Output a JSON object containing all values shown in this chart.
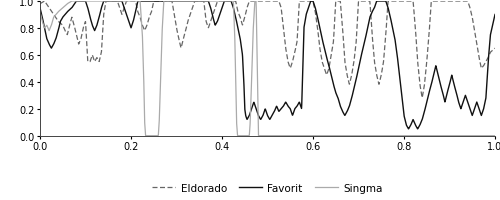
{
  "xlim": [
    0,
    1
  ],
  "ylim": [
    0,
    1.0
  ],
  "xticks": [
    0,
    0.2,
    0.4,
    0.6,
    0.8,
    1
  ],
  "yticks": [
    0,
    0.2,
    0.4,
    0.6,
    0.8,
    1
  ],
  "legend_labels": [
    "Eldorado",
    "Favorit",
    "Singma"
  ],
  "background_color": "#ffffff",
  "line_color_eldorado": "#666666",
  "line_color_favorit": "#111111",
  "line_color_singma": "#aaaaaa",
  "figsize": [
    5.0,
    2.01
  ],
  "dpi": 100,
  "eldorado_pts": [
    [
      0.0,
      0.98
    ],
    [
      0.01,
      1.0
    ],
    [
      0.02,
      0.95
    ],
    [
      0.03,
      0.9
    ],
    [
      0.04,
      0.85
    ],
    [
      0.05,
      0.82
    ],
    [
      0.055,
      0.78
    ],
    [
      0.06,
      0.75
    ],
    [
      0.065,
      0.82
    ],
    [
      0.07,
      0.88
    ],
    [
      0.075,
      0.82
    ],
    [
      0.08,
      0.75
    ],
    [
      0.085,
      0.68
    ],
    [
      0.09,
      0.72
    ],
    [
      0.095,
      0.8
    ],
    [
      0.1,
      0.85
    ],
    [
      0.105,
      0.55
    ],
    [
      0.11,
      0.55
    ],
    [
      0.115,
      0.6
    ],
    [
      0.12,
      0.55
    ],
    [
      0.125,
      0.58
    ],
    [
      0.13,
      0.55
    ],
    [
      0.135,
      0.62
    ],
    [
      0.14,
      0.9
    ],
    [
      0.145,
      1.0
    ],
    [
      0.15,
      1.0
    ],
    [
      0.16,
      1.0
    ],
    [
      0.17,
      1.0
    ],
    [
      0.175,
      0.95
    ],
    [
      0.18,
      0.9
    ],
    [
      0.185,
      0.95
    ],
    [
      0.19,
      1.0
    ],
    [
      0.2,
      1.0
    ],
    [
      0.21,
      1.0
    ],
    [
      0.215,
      0.92
    ],
    [
      0.22,
      0.88
    ],
    [
      0.225,
      0.82
    ],
    [
      0.23,
      0.78
    ],
    [
      0.235,
      0.82
    ],
    [
      0.24,
      0.88
    ],
    [
      0.245,
      0.92
    ],
    [
      0.25,
      1.0
    ],
    [
      0.26,
      1.0
    ],
    [
      0.27,
      1.0
    ],
    [
      0.28,
      1.0
    ],
    [
      0.29,
      1.0
    ],
    [
      0.295,
      0.9
    ],
    [
      0.3,
      0.8
    ],
    [
      0.305,
      0.72
    ],
    [
      0.31,
      0.65
    ],
    [
      0.315,
      0.72
    ],
    [
      0.32,
      0.78
    ],
    [
      0.325,
      0.85
    ],
    [
      0.33,
      0.9
    ],
    [
      0.335,
      0.95
    ],
    [
      0.34,
      1.0
    ],
    [
      0.35,
      1.0
    ],
    [
      0.36,
      1.0
    ],
    [
      0.365,
      0.85
    ],
    [
      0.37,
      0.8
    ],
    [
      0.375,
      0.85
    ],
    [
      0.38,
      0.9
    ],
    [
      0.385,
      0.95
    ],
    [
      0.39,
      1.0
    ],
    [
      0.4,
      1.0
    ],
    [
      0.41,
      1.0
    ],
    [
      0.42,
      1.0
    ],
    [
      0.43,
      1.0
    ],
    [
      0.435,
      0.92
    ],
    [
      0.44,
      0.88
    ],
    [
      0.445,
      0.82
    ],
    [
      0.45,
      0.88
    ],
    [
      0.455,
      0.95
    ],
    [
      0.46,
      1.0
    ],
    [
      0.47,
      1.0
    ],
    [
      0.48,
      1.0
    ],
    [
      0.485,
      1.0
    ],
    [
      0.49,
      1.0
    ],
    [
      0.5,
      1.0
    ],
    [
      0.505,
      1.0
    ],
    [
      0.51,
      1.0
    ],
    [
      0.515,
      1.0
    ],
    [
      0.52,
      1.0
    ],
    [
      0.525,
      1.0
    ],
    [
      0.53,
      0.95
    ],
    [
      0.535,
      0.8
    ],
    [
      0.54,
      0.65
    ],
    [
      0.545,
      0.55
    ],
    [
      0.55,
      0.5
    ],
    [
      0.555,
      0.55
    ],
    [
      0.56,
      0.62
    ],
    [
      0.565,
      0.7
    ],
    [
      0.57,
      1.0
    ],
    [
      0.58,
      1.0
    ],
    [
      0.585,
      1.0
    ],
    [
      0.59,
      1.0
    ],
    [
      0.595,
      1.0
    ],
    [
      0.6,
      1.0
    ],
    [
      0.605,
      0.92
    ],
    [
      0.61,
      0.8
    ],
    [
      0.615,
      0.65
    ],
    [
      0.62,
      0.55
    ],
    [
      0.625,
      0.5
    ],
    [
      0.63,
      0.45
    ],
    [
      0.635,
      0.5
    ],
    [
      0.64,
      0.6
    ],
    [
      0.645,
      0.7
    ],
    [
      0.65,
      1.0
    ],
    [
      0.655,
      1.0
    ],
    [
      0.66,
      1.0
    ],
    [
      0.665,
      0.8
    ],
    [
      0.67,
      0.55
    ],
    [
      0.675,
      0.45
    ],
    [
      0.68,
      0.38
    ],
    [
      0.685,
      0.45
    ],
    [
      0.69,
      0.55
    ],
    [
      0.695,
      0.7
    ],
    [
      0.7,
      1.0
    ],
    [
      0.705,
      1.0
    ],
    [
      0.71,
      1.0
    ],
    [
      0.715,
      1.0
    ],
    [
      0.72,
      1.0
    ],
    [
      0.725,
      1.0
    ],
    [
      0.73,
      0.75
    ],
    [
      0.735,
      0.55
    ],
    [
      0.74,
      0.45
    ],
    [
      0.745,
      0.38
    ],
    [
      0.75,
      0.45
    ],
    [
      0.755,
      0.55
    ],
    [
      0.76,
      0.75
    ],
    [
      0.765,
      1.0
    ],
    [
      0.77,
      1.0
    ],
    [
      0.775,
      1.0
    ],
    [
      0.78,
      1.0
    ],
    [
      0.79,
      1.0
    ],
    [
      0.8,
      1.0
    ],
    [
      0.81,
      1.0
    ],
    [
      0.82,
      1.0
    ],
    [
      0.825,
      0.8
    ],
    [
      0.83,
      0.55
    ],
    [
      0.835,
      0.38
    ],
    [
      0.84,
      0.28
    ],
    [
      0.845,
      0.38
    ],
    [
      0.85,
      0.55
    ],
    [
      0.855,
      0.75
    ],
    [
      0.86,
      1.0
    ],
    [
      0.87,
      1.0
    ],
    [
      0.88,
      1.0
    ],
    [
      0.89,
      1.0
    ],
    [
      0.9,
      1.0
    ],
    [
      0.91,
      1.0
    ],
    [
      0.92,
      1.0
    ],
    [
      0.93,
      1.0
    ],
    [
      0.94,
      1.0
    ],
    [
      0.945,
      0.95
    ],
    [
      0.95,
      0.88
    ],
    [
      0.955,
      0.78
    ],
    [
      0.96,
      0.68
    ],
    [
      0.965,
      0.58
    ],
    [
      0.97,
      0.5
    ],
    [
      0.975,
      0.52
    ],
    [
      0.98,
      0.55
    ],
    [
      0.985,
      0.58
    ],
    [
      0.99,
      0.62
    ],
    [
      1.0,
      0.65
    ]
  ],
  "favorit_pts": [
    [
      0.0,
      0.95
    ],
    [
      0.005,
      0.88
    ],
    [
      0.01,
      0.8
    ],
    [
      0.015,
      0.72
    ],
    [
      0.02,
      0.68
    ],
    [
      0.025,
      0.65
    ],
    [
      0.03,
      0.68
    ],
    [
      0.035,
      0.72
    ],
    [
      0.04,
      0.78
    ],
    [
      0.045,
      0.85
    ],
    [
      0.05,
      0.88
    ],
    [
      0.055,
      0.9
    ],
    [
      0.06,
      0.92
    ],
    [
      0.07,
      0.95
    ],
    [
      0.08,
      1.0
    ],
    [
      0.09,
      1.0
    ],
    [
      0.1,
      1.0
    ],
    [
      0.105,
      0.95
    ],
    [
      0.11,
      0.88
    ],
    [
      0.115,
      0.82
    ],
    [
      0.12,
      0.78
    ],
    [
      0.125,
      0.82
    ],
    [
      0.13,
      0.88
    ],
    [
      0.135,
      0.95
    ],
    [
      0.14,
      1.0
    ],
    [
      0.15,
      1.0
    ],
    [
      0.16,
      1.0
    ],
    [
      0.17,
      1.0
    ],
    [
      0.18,
      1.0
    ],
    [
      0.185,
      0.95
    ],
    [
      0.19,
      0.9
    ],
    [
      0.195,
      0.85
    ],
    [
      0.2,
      0.8
    ],
    [
      0.205,
      0.85
    ],
    [
      0.21,
      0.92
    ],
    [
      0.215,
      1.0
    ],
    [
      0.22,
      1.0
    ],
    [
      0.23,
      1.0
    ],
    [
      0.24,
      1.0
    ],
    [
      0.25,
      1.0
    ],
    [
      0.26,
      1.0
    ],
    [
      0.27,
      1.0
    ],
    [
      0.28,
      1.0
    ],
    [
      0.29,
      1.0
    ],
    [
      0.3,
      1.0
    ],
    [
      0.31,
      1.0
    ],
    [
      0.32,
      1.0
    ],
    [
      0.33,
      1.0
    ],
    [
      0.34,
      1.0
    ],
    [
      0.35,
      1.0
    ],
    [
      0.36,
      1.0
    ],
    [
      0.37,
      1.0
    ],
    [
      0.375,
      0.95
    ],
    [
      0.38,
      0.88
    ],
    [
      0.385,
      0.82
    ],
    [
      0.39,
      0.85
    ],
    [
      0.395,
      0.9
    ],
    [
      0.4,
      0.95
    ],
    [
      0.405,
      1.0
    ],
    [
      0.41,
      1.0
    ],
    [
      0.42,
      1.0
    ],
    [
      0.425,
      0.95
    ],
    [
      0.43,
      0.88
    ],
    [
      0.435,
      0.8
    ],
    [
      0.44,
      0.72
    ],
    [
      0.445,
      0.6
    ],
    [
      0.448,
      0.4
    ],
    [
      0.45,
      0.2
    ],
    [
      0.452,
      0.15
    ],
    [
      0.455,
      0.12
    ],
    [
      0.46,
      0.15
    ],
    [
      0.465,
      0.2
    ],
    [
      0.47,
      0.25
    ],
    [
      0.475,
      0.2
    ],
    [
      0.48,
      0.15
    ],
    [
      0.485,
      0.12
    ],
    [
      0.49,
      0.15
    ],
    [
      0.495,
      0.2
    ],
    [
      0.5,
      0.15
    ],
    [
      0.505,
      0.12
    ],
    [
      0.51,
      0.15
    ],
    [
      0.515,
      0.18
    ],
    [
      0.52,
      0.22
    ],
    [
      0.525,
      0.18
    ],
    [
      0.53,
      0.2
    ],
    [
      0.535,
      0.22
    ],
    [
      0.54,
      0.25
    ],
    [
      0.545,
      0.22
    ],
    [
      0.55,
      0.2
    ],
    [
      0.555,
      0.15
    ],
    [
      0.56,
      0.2
    ],
    [
      0.565,
      0.22
    ],
    [
      0.57,
      0.25
    ],
    [
      0.575,
      0.2
    ],
    [
      0.58,
      0.8
    ],
    [
      0.585,
      0.9
    ],
    [
      0.59,
      0.95
    ],
    [
      0.595,
      1.0
    ],
    [
      0.6,
      1.0
    ],
    [
      0.605,
      0.95
    ],
    [
      0.61,
      0.88
    ],
    [
      0.615,
      0.8
    ],
    [
      0.62,
      0.72
    ],
    [
      0.625,
      0.65
    ],
    [
      0.63,
      0.58
    ],
    [
      0.635,
      0.52
    ],
    [
      0.64,
      0.45
    ],
    [
      0.645,
      0.38
    ],
    [
      0.65,
      0.32
    ],
    [
      0.655,
      0.28
    ],
    [
      0.66,
      0.22
    ],
    [
      0.665,
      0.18
    ],
    [
      0.67,
      0.15
    ],
    [
      0.675,
      0.18
    ],
    [
      0.68,
      0.22
    ],
    [
      0.685,
      0.28
    ],
    [
      0.69,
      0.35
    ],
    [
      0.695,
      0.42
    ],
    [
      0.7,
      0.5
    ],
    [
      0.705,
      0.58
    ],
    [
      0.71,
      0.65
    ],
    [
      0.715,
      0.72
    ],
    [
      0.72,
      0.8
    ],
    [
      0.725,
      0.88
    ],
    [
      0.73,
      0.92
    ],
    [
      0.735,
      0.95
    ],
    [
      0.74,
      1.0
    ],
    [
      0.745,
      1.0
    ],
    [
      0.75,
      1.0
    ],
    [
      0.755,
      1.0
    ],
    [
      0.76,
      1.0
    ],
    [
      0.765,
      0.95
    ],
    [
      0.77,
      0.88
    ],
    [
      0.775,
      0.8
    ],
    [
      0.78,
      0.72
    ],
    [
      0.785,
      0.6
    ],
    [
      0.79,
      0.45
    ],
    [
      0.795,
      0.3
    ],
    [
      0.8,
      0.15
    ],
    [
      0.805,
      0.08
    ],
    [
      0.81,
      0.05
    ],
    [
      0.815,
      0.08
    ],
    [
      0.82,
      0.12
    ],
    [
      0.825,
      0.08
    ],
    [
      0.83,
      0.05
    ],
    [
      0.835,
      0.08
    ],
    [
      0.84,
      0.12
    ],
    [
      0.845,
      0.18
    ],
    [
      0.85,
      0.25
    ],
    [
      0.855,
      0.32
    ],
    [
      0.86,
      0.38
    ],
    [
      0.865,
      0.45
    ],
    [
      0.87,
      0.52
    ],
    [
      0.875,
      0.45
    ],
    [
      0.88,
      0.38
    ],
    [
      0.885,
      0.32
    ],
    [
      0.89,
      0.25
    ],
    [
      0.895,
      0.32
    ],
    [
      0.9,
      0.38
    ],
    [
      0.905,
      0.45
    ],
    [
      0.91,
      0.38
    ],
    [
      0.915,
      0.32
    ],
    [
      0.92,
      0.25
    ],
    [
      0.925,
      0.2
    ],
    [
      0.93,
      0.25
    ],
    [
      0.935,
      0.3
    ],
    [
      0.94,
      0.25
    ],
    [
      0.945,
      0.2
    ],
    [
      0.95,
      0.15
    ],
    [
      0.955,
      0.2
    ],
    [
      0.96,
      0.25
    ],
    [
      0.965,
      0.2
    ],
    [
      0.97,
      0.15
    ],
    [
      0.975,
      0.2
    ],
    [
      0.98,
      0.28
    ],
    [
      0.985,
      0.55
    ],
    [
      0.99,
      0.75
    ],
    [
      1.0,
      0.9
    ]
  ],
  "singma_pts": [
    [
      0.0,
      0.92
    ],
    [
      0.005,
      0.85
    ],
    [
      0.01,
      0.8
    ],
    [
      0.015,
      0.82
    ],
    [
      0.02,
      0.78
    ],
    [
      0.025,
      0.82
    ],
    [
      0.03,
      0.88
    ],
    [
      0.04,
      0.92
    ],
    [
      0.05,
      0.95
    ],
    [
      0.06,
      0.98
    ],
    [
      0.07,
      1.0
    ],
    [
      0.08,
      1.0
    ],
    [
      0.09,
      1.0
    ],
    [
      0.1,
      1.0
    ],
    [
      0.11,
      1.0
    ],
    [
      0.12,
      1.0
    ],
    [
      0.13,
      1.0
    ],
    [
      0.14,
      1.0
    ],
    [
      0.15,
      1.0
    ],
    [
      0.16,
      1.0
    ],
    [
      0.17,
      1.0
    ],
    [
      0.18,
      1.0
    ],
    [
      0.19,
      1.0
    ],
    [
      0.2,
      1.0
    ],
    [
      0.21,
      1.0
    ],
    [
      0.22,
      1.0
    ],
    [
      0.225,
      0.75
    ],
    [
      0.228,
      0.42
    ],
    [
      0.23,
      0.1
    ],
    [
      0.232,
      0.0
    ],
    [
      0.235,
      0.0
    ],
    [
      0.24,
      0.0
    ],
    [
      0.245,
      0.0
    ],
    [
      0.25,
      0.0
    ],
    [
      0.255,
      0.0
    ],
    [
      0.26,
      0.0
    ],
    [
      0.262,
      0.1
    ],
    [
      0.265,
      0.42
    ],
    [
      0.268,
      0.75
    ],
    [
      0.272,
      1.0
    ],
    [
      0.28,
      1.0
    ],
    [
      0.29,
      1.0
    ],
    [
      0.3,
      1.0
    ],
    [
      0.31,
      1.0
    ],
    [
      0.32,
      1.0
    ],
    [
      0.33,
      1.0
    ],
    [
      0.34,
      1.0
    ],
    [
      0.35,
      1.0
    ],
    [
      0.36,
      1.0
    ],
    [
      0.37,
      1.0
    ],
    [
      0.38,
      1.0
    ],
    [
      0.39,
      1.0
    ],
    [
      0.4,
      1.0
    ],
    [
      0.41,
      1.0
    ],
    [
      0.42,
      1.0
    ],
    [
      0.425,
      1.0
    ],
    [
      0.428,
      0.75
    ],
    [
      0.43,
      0.42
    ],
    [
      0.432,
      0.1
    ],
    [
      0.434,
      0.0
    ],
    [
      0.436,
      0.0
    ],
    [
      0.44,
      0.0
    ],
    [
      0.445,
      0.0
    ],
    [
      0.45,
      0.0
    ],
    [
      0.455,
      0.0
    ],
    [
      0.46,
      0.0
    ],
    [
      0.462,
      0.1
    ],
    [
      0.465,
      0.42
    ],
    [
      0.468,
      0.75
    ],
    [
      0.472,
      1.0
    ],
    [
      0.475,
      1.0
    ],
    [
      0.478,
      0.42
    ],
    [
      0.48,
      0.0
    ],
    [
      0.485,
      0.0
    ],
    [
      1.0,
      0.0
    ]
  ]
}
